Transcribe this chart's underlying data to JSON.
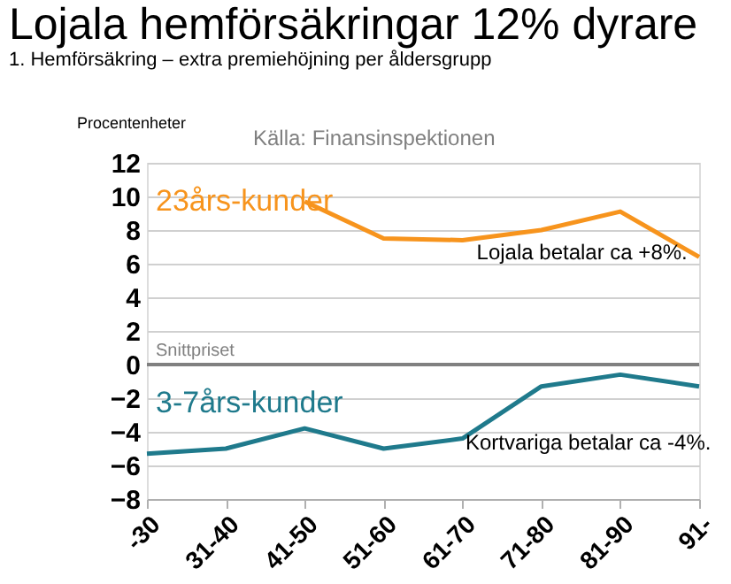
{
  "chart_data": {
    "type": "line",
    "title": "Lojala hemförsäkringar 12% dyrare",
    "subtitle": "1. Hemförsäkring – extra premiehöjning per åldersgrupp",
    "ylabel": "Procentenheter",
    "categories": [
      "-30",
      "31-40",
      "41-50",
      "51-60",
      "61-70",
      "71-80",
      "81-90",
      "91-"
    ],
    "series": [
      {
        "name": "23års-kunder",
        "color": "#f7941d",
        "values": [
          null,
          null,
          9.7,
          7.5,
          7.4,
          8.0,
          9.1,
          6.4
        ]
      },
      {
        "name": "3-7års-kunder",
        "color": "#1f7a8c",
        "values": [
          -5.3,
          -5.0,
          -3.8,
          -5.0,
          -4.4,
          -1.3,
          -0.6,
          -1.3
        ]
      }
    ],
    "ylim": [
      -8,
      12
    ],
    "yticks": [
      -8,
      -6,
      -4,
      -2,
      0,
      2,
      4,
      6,
      8,
      10,
      12
    ],
    "grid": "y",
    "marker": "none",
    "line_style": "solid",
    "ref_lines": [
      {
        "axis": "y",
        "value": 0,
        "label": "Snittpriset",
        "color": "#808080"
      }
    ],
    "annotations": [
      "Källa: Finansinspektionen",
      {
        "text": "Lojala betalar ca +8%.",
        "x": "61-70",
        "y": 7.2
      },
      "Kortvariga betalar ca -4%."
    ]
  }
}
